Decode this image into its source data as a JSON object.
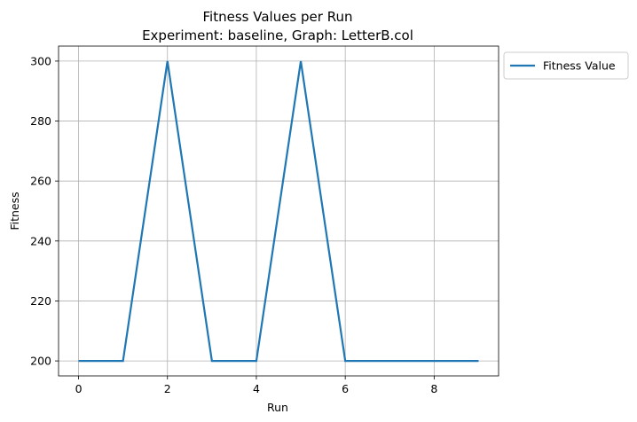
{
  "chart_data": {
    "type": "line",
    "title": "Fitness Values per Run",
    "subtitle": "Experiment: baseline, Graph: LetterB.col",
    "xlabel": "Run",
    "ylabel": "Fitness",
    "x": [
      0,
      1,
      2,
      3,
      4,
      5,
      6,
      7,
      8,
      9
    ],
    "series": [
      {
        "name": "Fitness Value",
        "values": [
          200,
          200,
          300,
          200,
          200,
          300,
          200,
          200,
          200,
          200
        ],
        "color": "#1f77b4"
      }
    ],
    "xlim": [
      -0.45,
      9.45
    ],
    "ylim": [
      195,
      305
    ],
    "xticks": [
      0,
      2,
      4,
      6,
      8
    ],
    "yticks": [
      200,
      220,
      240,
      260,
      280,
      300
    ],
    "grid": true,
    "legend_position": "outside-top-right"
  }
}
